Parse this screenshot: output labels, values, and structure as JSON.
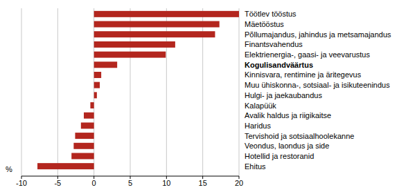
{
  "chart_data": {
    "type": "bar",
    "orientation": "horizontal",
    "xlabel": "%",
    "categories": [
      "Töötlev tööstus",
      "Mäetööstus",
      "Põllumajandus, jahindus ja metsamajandus",
      "Finantsvahendus",
      "Elektrienergia-, gaasi- ja veevarustus",
      "Kogulisandväärtus",
      "Kinnisvara, rentimine ja äritegevus",
      "Muu ühiskonna-, sotsiaal- ja isikuteenindus",
      "Hulgi- ja jaekaubandus",
      "Kalapüük",
      "Avalik haldus ja riigikaitse",
      "Haridus",
      "Tervishoid ja sotsiaalhoolekanne",
      "Veondus, laondus ja side",
      "Hotellid ja restoranid",
      "Ehitus"
    ],
    "values": [
      20,
      17.3,
      16.7,
      11.2,
      9.9,
      3.2,
      1.0,
      0.8,
      0.4,
      -0.5,
      -1.4,
      -1.8,
      -2.6,
      -2.8,
      -3.1,
      -7.8
    ],
    "color": "#b3261e",
    "xlim": [
      -10,
      20
    ],
    "xticks": [
      -10,
      -5,
      0,
      5,
      10,
      15,
      20
    ],
    "grid": true
  }
}
